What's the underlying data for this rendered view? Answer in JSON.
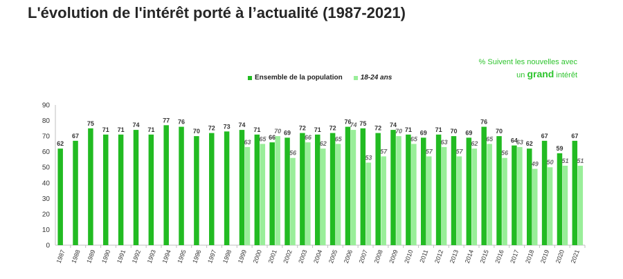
{
  "title": "L'évolution de l'intérêt porté à l’actualité (1987-2021)",
  "note": {
    "line1": "% Suivent les nouvelles avec",
    "prefix": "un",
    "strong": "grand",
    "suffix": "intérêt"
  },
  "colors": {
    "ensemble": "#22bb22",
    "jeunes": "#99ee99"
  },
  "chart_data": {
    "type": "bar",
    "title": "L'évolution de l'intérêt porté à l’actualité (1987-2021)",
    "xlabel": "",
    "ylabel": "",
    "ylim": [
      0,
      90
    ],
    "yticks": [
      0,
      10,
      20,
      30,
      40,
      50,
      60,
      70,
      80,
      90
    ],
    "grid": false,
    "legend": "top-center",
    "categories": [
      "1987",
      "1988",
      "1989",
      "1990",
      "1991",
      "1992",
      "1993",
      "1994",
      "1995",
      "1996",
      "1997",
      "1998",
      "1999",
      "2000",
      "2001",
      "2002",
      "2003",
      "2004",
      "2005",
      "2006",
      "2007",
      "2008",
      "2009",
      "2010",
      "2011",
      "2012",
      "2013",
      "2014",
      "2015",
      "2016",
      "2017",
      "2018",
      "2019",
      "2020",
      "2021"
    ],
    "series": [
      {
        "name": "Ensemble de la population",
        "values": [
          62,
          67,
          75,
          71,
          71,
          74,
          71,
          77,
          76,
          70,
          72,
          73,
          74,
          71,
          66,
          69,
          72,
          71,
          72,
          76,
          75,
          72,
          74,
          71,
          69,
          71,
          70,
          69,
          76,
          70,
          64,
          62,
          67,
          59,
          67
        ]
      },
      {
        "name": "18-24 ans",
        "values": [
          null,
          null,
          null,
          null,
          null,
          null,
          null,
          null,
          null,
          null,
          null,
          null,
          63,
          65,
          70,
          56,
          66,
          62,
          65,
          74,
          53,
          57,
          70,
          65,
          57,
          63,
          57,
          62,
          65,
          56,
          63,
          49,
          50,
          51,
          51
        ]
      }
    ]
  }
}
